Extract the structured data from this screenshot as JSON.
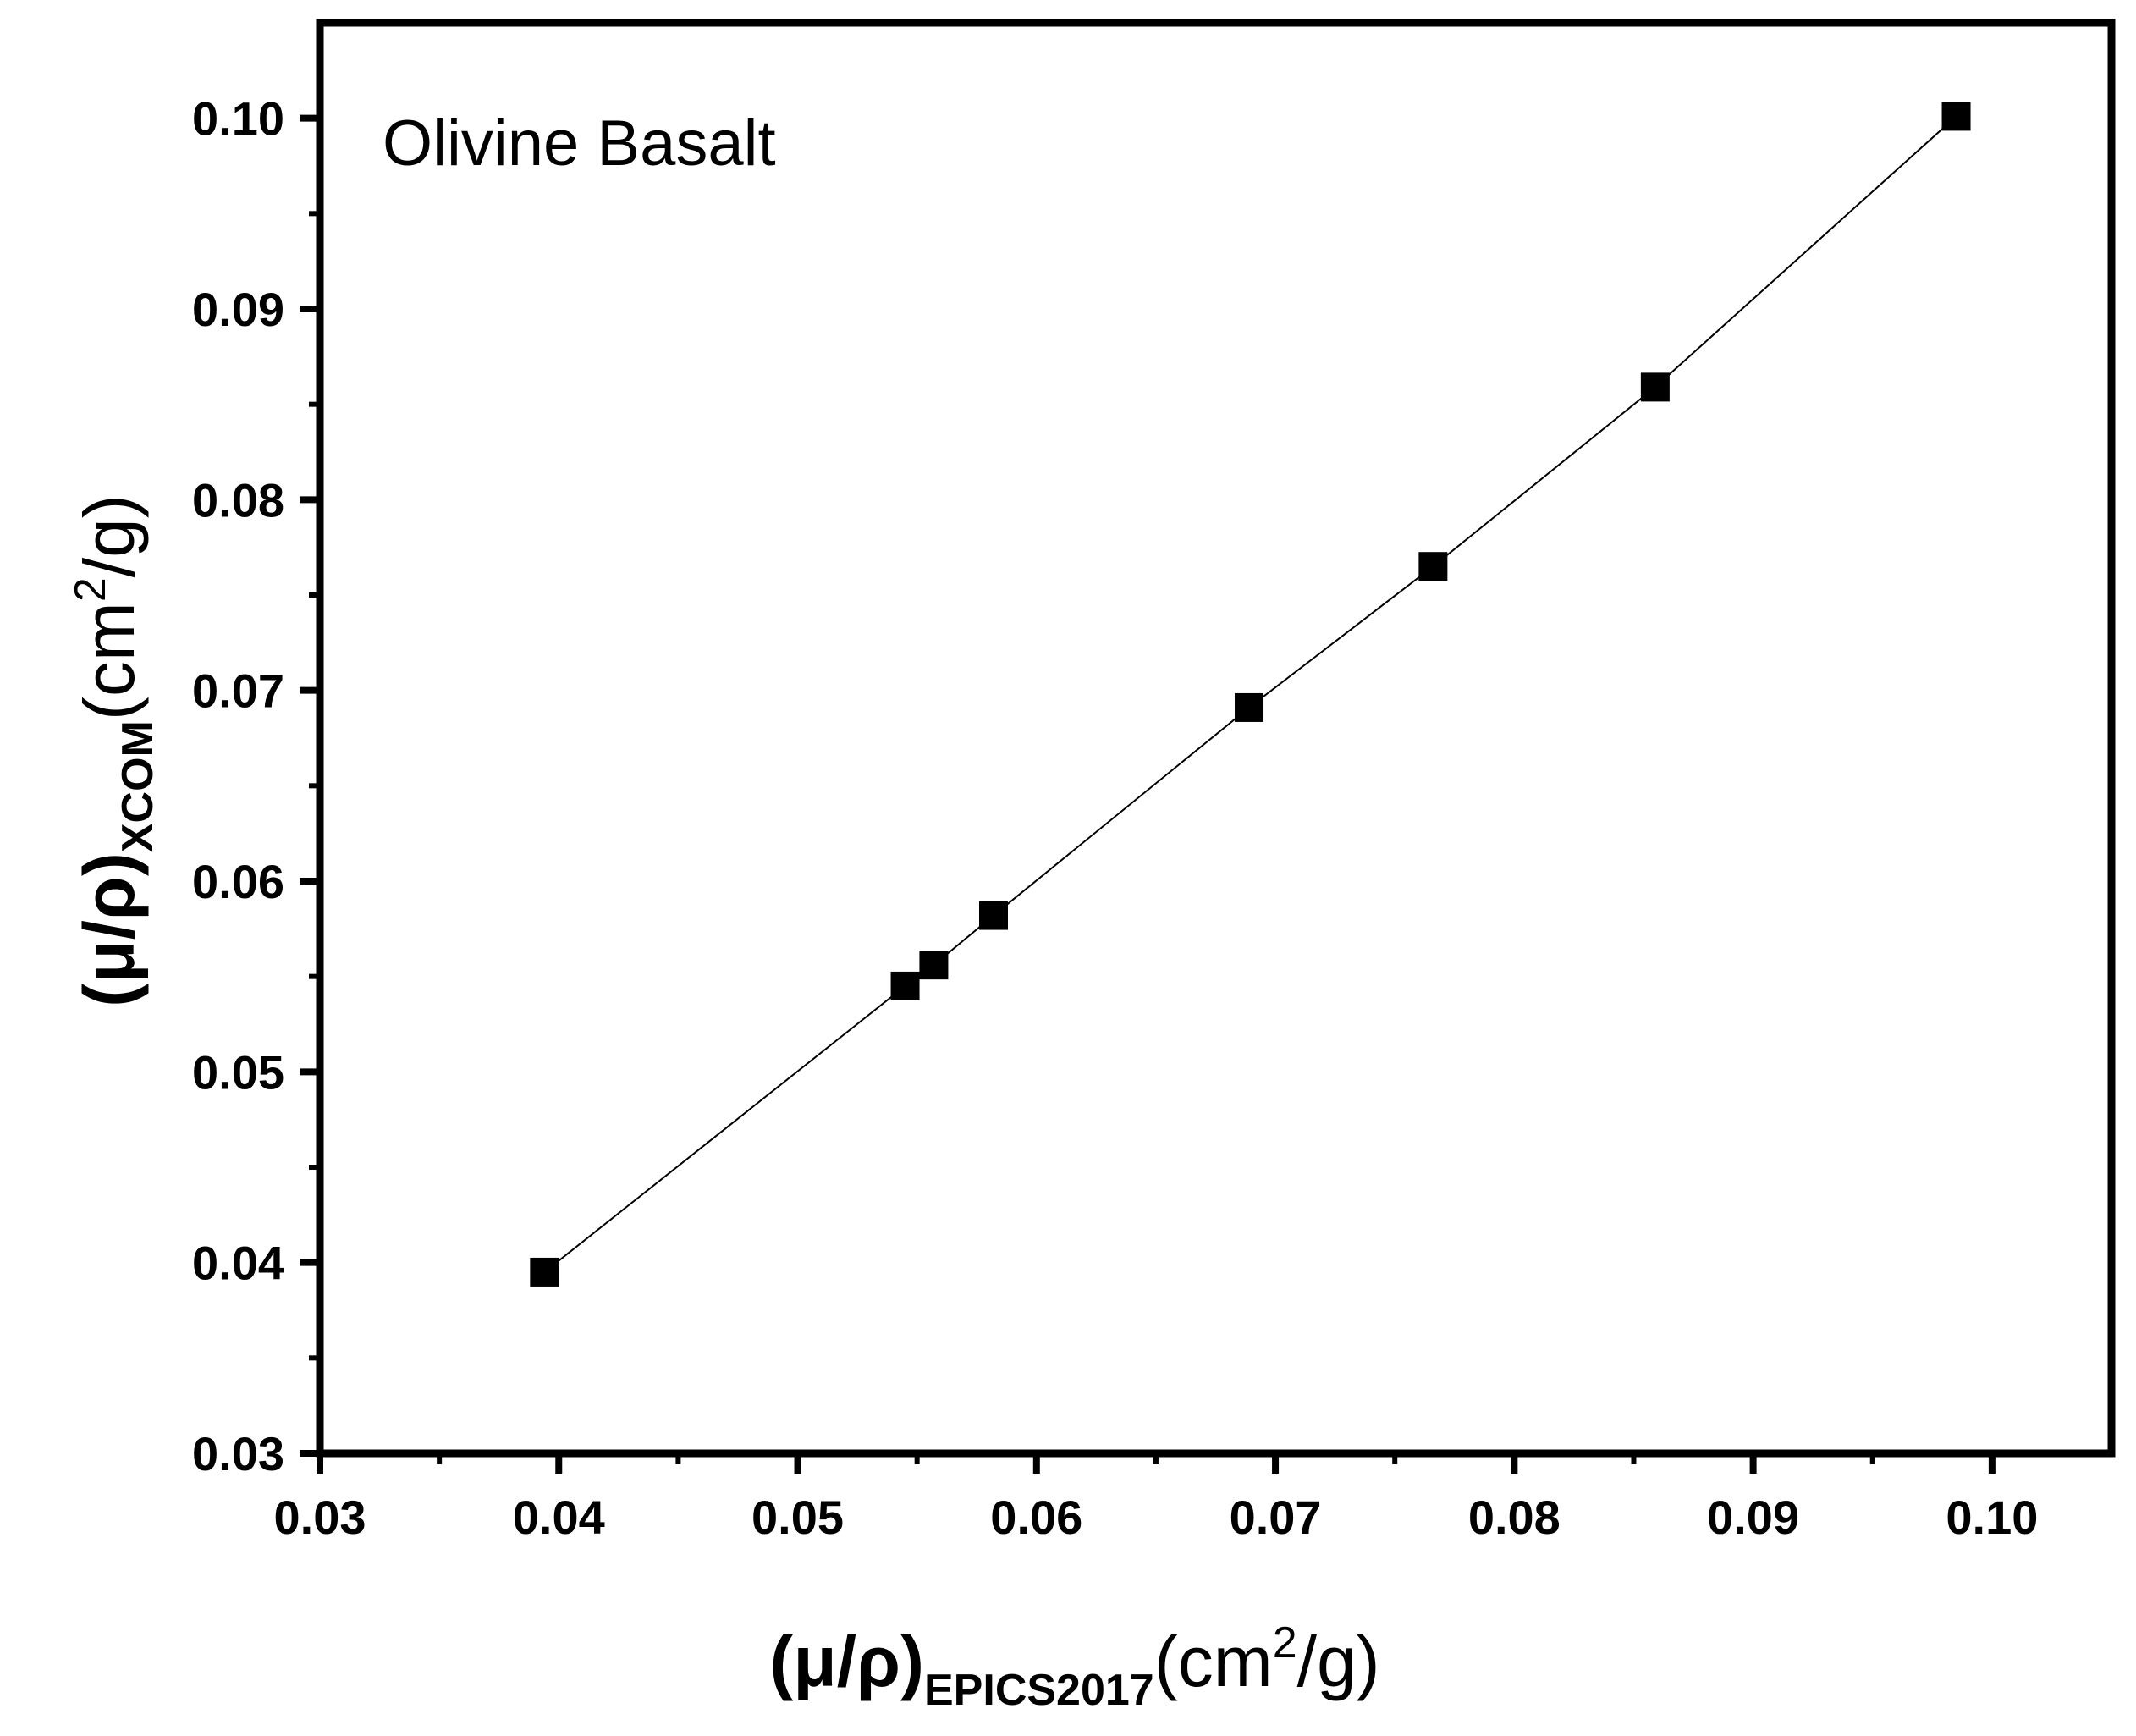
{
  "chart_data": {
    "type": "scatter",
    "title": "",
    "annotation": "Olivine Basalt",
    "xlabel": {
      "prefix": "(μ/ρ)",
      "subscript": "EPICS2017",
      "unit_open": "(cm",
      "superscript": "2",
      "unit_close": "/g)"
    },
    "ylabel": {
      "prefix": "(μ/ρ)",
      "subscript": "XCOM",
      "unit_open": "(cm",
      "superscript": "2",
      "unit_close": "/g)"
    },
    "xlim": [
      0.03,
      0.105
    ],
    "ylim": [
      0.03,
      0.105
    ],
    "xticks": [
      "0.03",
      "0.04",
      "0.05",
      "0.06",
      "0.07",
      "0.08",
      "0.09",
      "0.10"
    ],
    "yticks": [
      "0.03",
      "0.04",
      "0.05",
      "0.06",
      "0.07",
      "0.08",
      "0.09",
      "0.10"
    ],
    "grid": false,
    "series": [
      {
        "name": "Olivine Basalt",
        "marker": "square",
        "line": true,
        "color": "#000000",
        "x": [
          0.0394,
          0.0545,
          0.0557,
          0.0582,
          0.0689,
          0.0766,
          0.0859,
          0.0985
        ],
        "y": [
          0.0395,
          0.0545,
          0.0556,
          0.0582,
          0.0691,
          0.0765,
          0.0859,
          0.1001
        ]
      }
    ]
  }
}
